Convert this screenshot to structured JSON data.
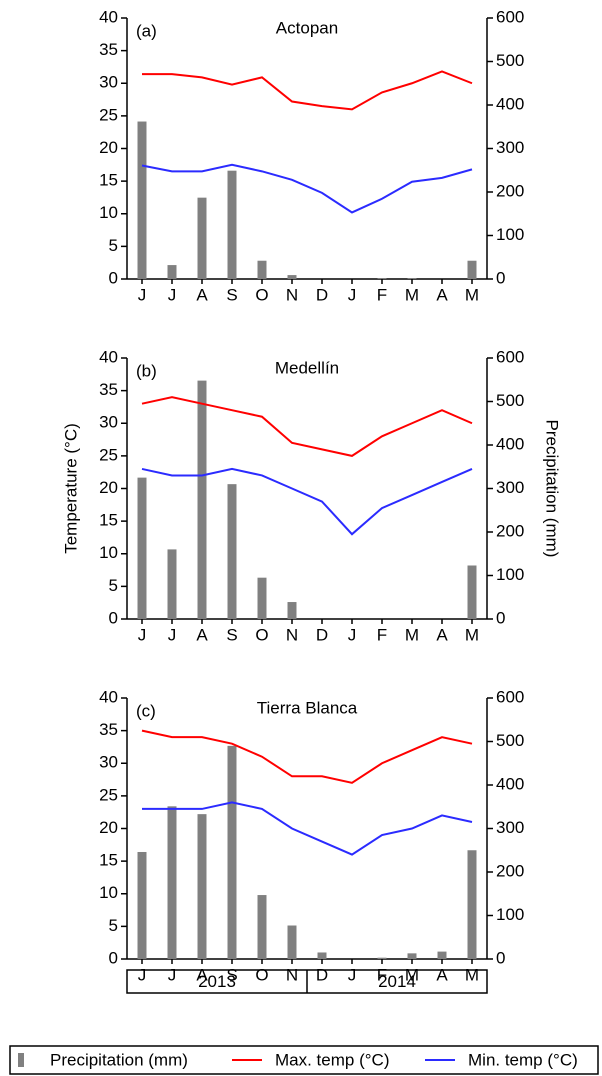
{
  "chart_data": [
    {
      "type": "bar_line",
      "panel": "(a)",
      "title": "Actopan",
      "categories": [
        "J",
        "J",
        "A",
        "S",
        "O",
        "N",
        "D",
        "J",
        "F",
        "M",
        "A",
        "M"
      ],
      "ylim": [
        0,
        40
      ],
      "yticks": [
        0,
        5,
        10,
        15,
        20,
        25,
        30,
        35,
        40
      ],
      "y2lim": [
        0,
        600
      ],
      "y2ticks": [
        0,
        100,
        200,
        300,
        400,
        500,
        600
      ],
      "series": [
        {
          "name": "Precipitation (mm)",
          "type": "bar",
          "axis": "y2",
          "color": "#808080",
          "values": [
            362,
            32,
            187,
            249,
            42,
            9,
            0,
            0,
            2,
            2,
            0,
            42
          ]
        },
        {
          "name": "Max. temp (°C)",
          "type": "line",
          "color": "#ff0000",
          "values": [
            31.4,
            31.4,
            30.9,
            29.8,
            30.9,
            27.2,
            26.5,
            26,
            28.6,
            30,
            31.8,
            30
          ]
        },
        {
          "name": "Min. temp (°C)",
          "type": "line",
          "color": "#2b2bff",
          "values": [
            17.4,
            16.5,
            16.5,
            17.5,
            16.5,
            15.2,
            13.2,
            10.2,
            12.3,
            14.9,
            15.5,
            16.8
          ]
        }
      ]
    },
    {
      "type": "bar_line",
      "panel": "(b)",
      "title": "Medellín",
      "ylabel": "Temperature (°C)",
      "y2label": "Precipitation (mm)",
      "categories": [
        "J",
        "J",
        "A",
        "S",
        "O",
        "N",
        "D",
        "J",
        "F",
        "M",
        "A",
        "M"
      ],
      "ylim": [
        0,
        40
      ],
      "yticks": [
        0,
        5,
        10,
        15,
        20,
        25,
        30,
        35,
        40
      ],
      "y2lim": [
        0,
        600
      ],
      "y2ticks": [
        0,
        100,
        200,
        300,
        400,
        500,
        600
      ],
      "series": [
        {
          "name": "Precipitation (mm)",
          "type": "bar",
          "axis": "y2",
          "color": "#808080",
          "values": [
            325,
            160,
            548,
            310,
            95,
            39,
            0,
            0,
            0,
            0,
            0,
            123
          ]
        },
        {
          "name": "Max. temp (°C)",
          "type": "line",
          "color": "#ff0000",
          "values": [
            33,
            34,
            33,
            32,
            31,
            27,
            26,
            25,
            28,
            30,
            32,
            30
          ]
        },
        {
          "name": "Min. temp (°C)",
          "type": "line",
          "color": "#2b2bff",
          "values": [
            23,
            22,
            22,
            23,
            22,
            20,
            18,
            13,
            17,
            19,
            21,
            23
          ]
        }
      ]
    },
    {
      "type": "bar_line",
      "panel": "(c)",
      "title": "Tierra Blanca",
      "categories": [
        "J",
        "J",
        "A",
        "S",
        "O",
        "N",
        "D",
        "J",
        "F",
        "M",
        "A",
        "M"
      ],
      "ylim": [
        0,
        40
      ],
      "yticks": [
        0,
        5,
        10,
        15,
        20,
        25,
        30,
        35,
        40
      ],
      "y2lim": [
        0,
        600
      ],
      "y2ticks": [
        0,
        100,
        200,
        300,
        400,
        500,
        600
      ],
      "year_labels": [
        "2013",
        "2014"
      ],
      "series": [
        {
          "name": "Precipitation (mm)",
          "type": "bar",
          "axis": "y2",
          "color": "#808080",
          "values": [
            246,
            351,
            333,
            490,
            147,
            77,
            15,
            0,
            3,
            13,
            17,
            250
          ]
        },
        {
          "name": "Max. temp (°C)",
          "type": "line",
          "color": "#ff0000",
          "values": [
            35,
            34,
            34,
            33,
            31,
            28,
            28,
            27,
            30,
            32,
            34,
            33
          ]
        },
        {
          "name": "Min. temp (°C)",
          "type": "line",
          "color": "#2b2bff",
          "values": [
            23,
            23,
            23,
            24,
            23,
            20,
            18,
            16,
            19,
            20,
            22,
            21
          ]
        }
      ]
    }
  ]
}
